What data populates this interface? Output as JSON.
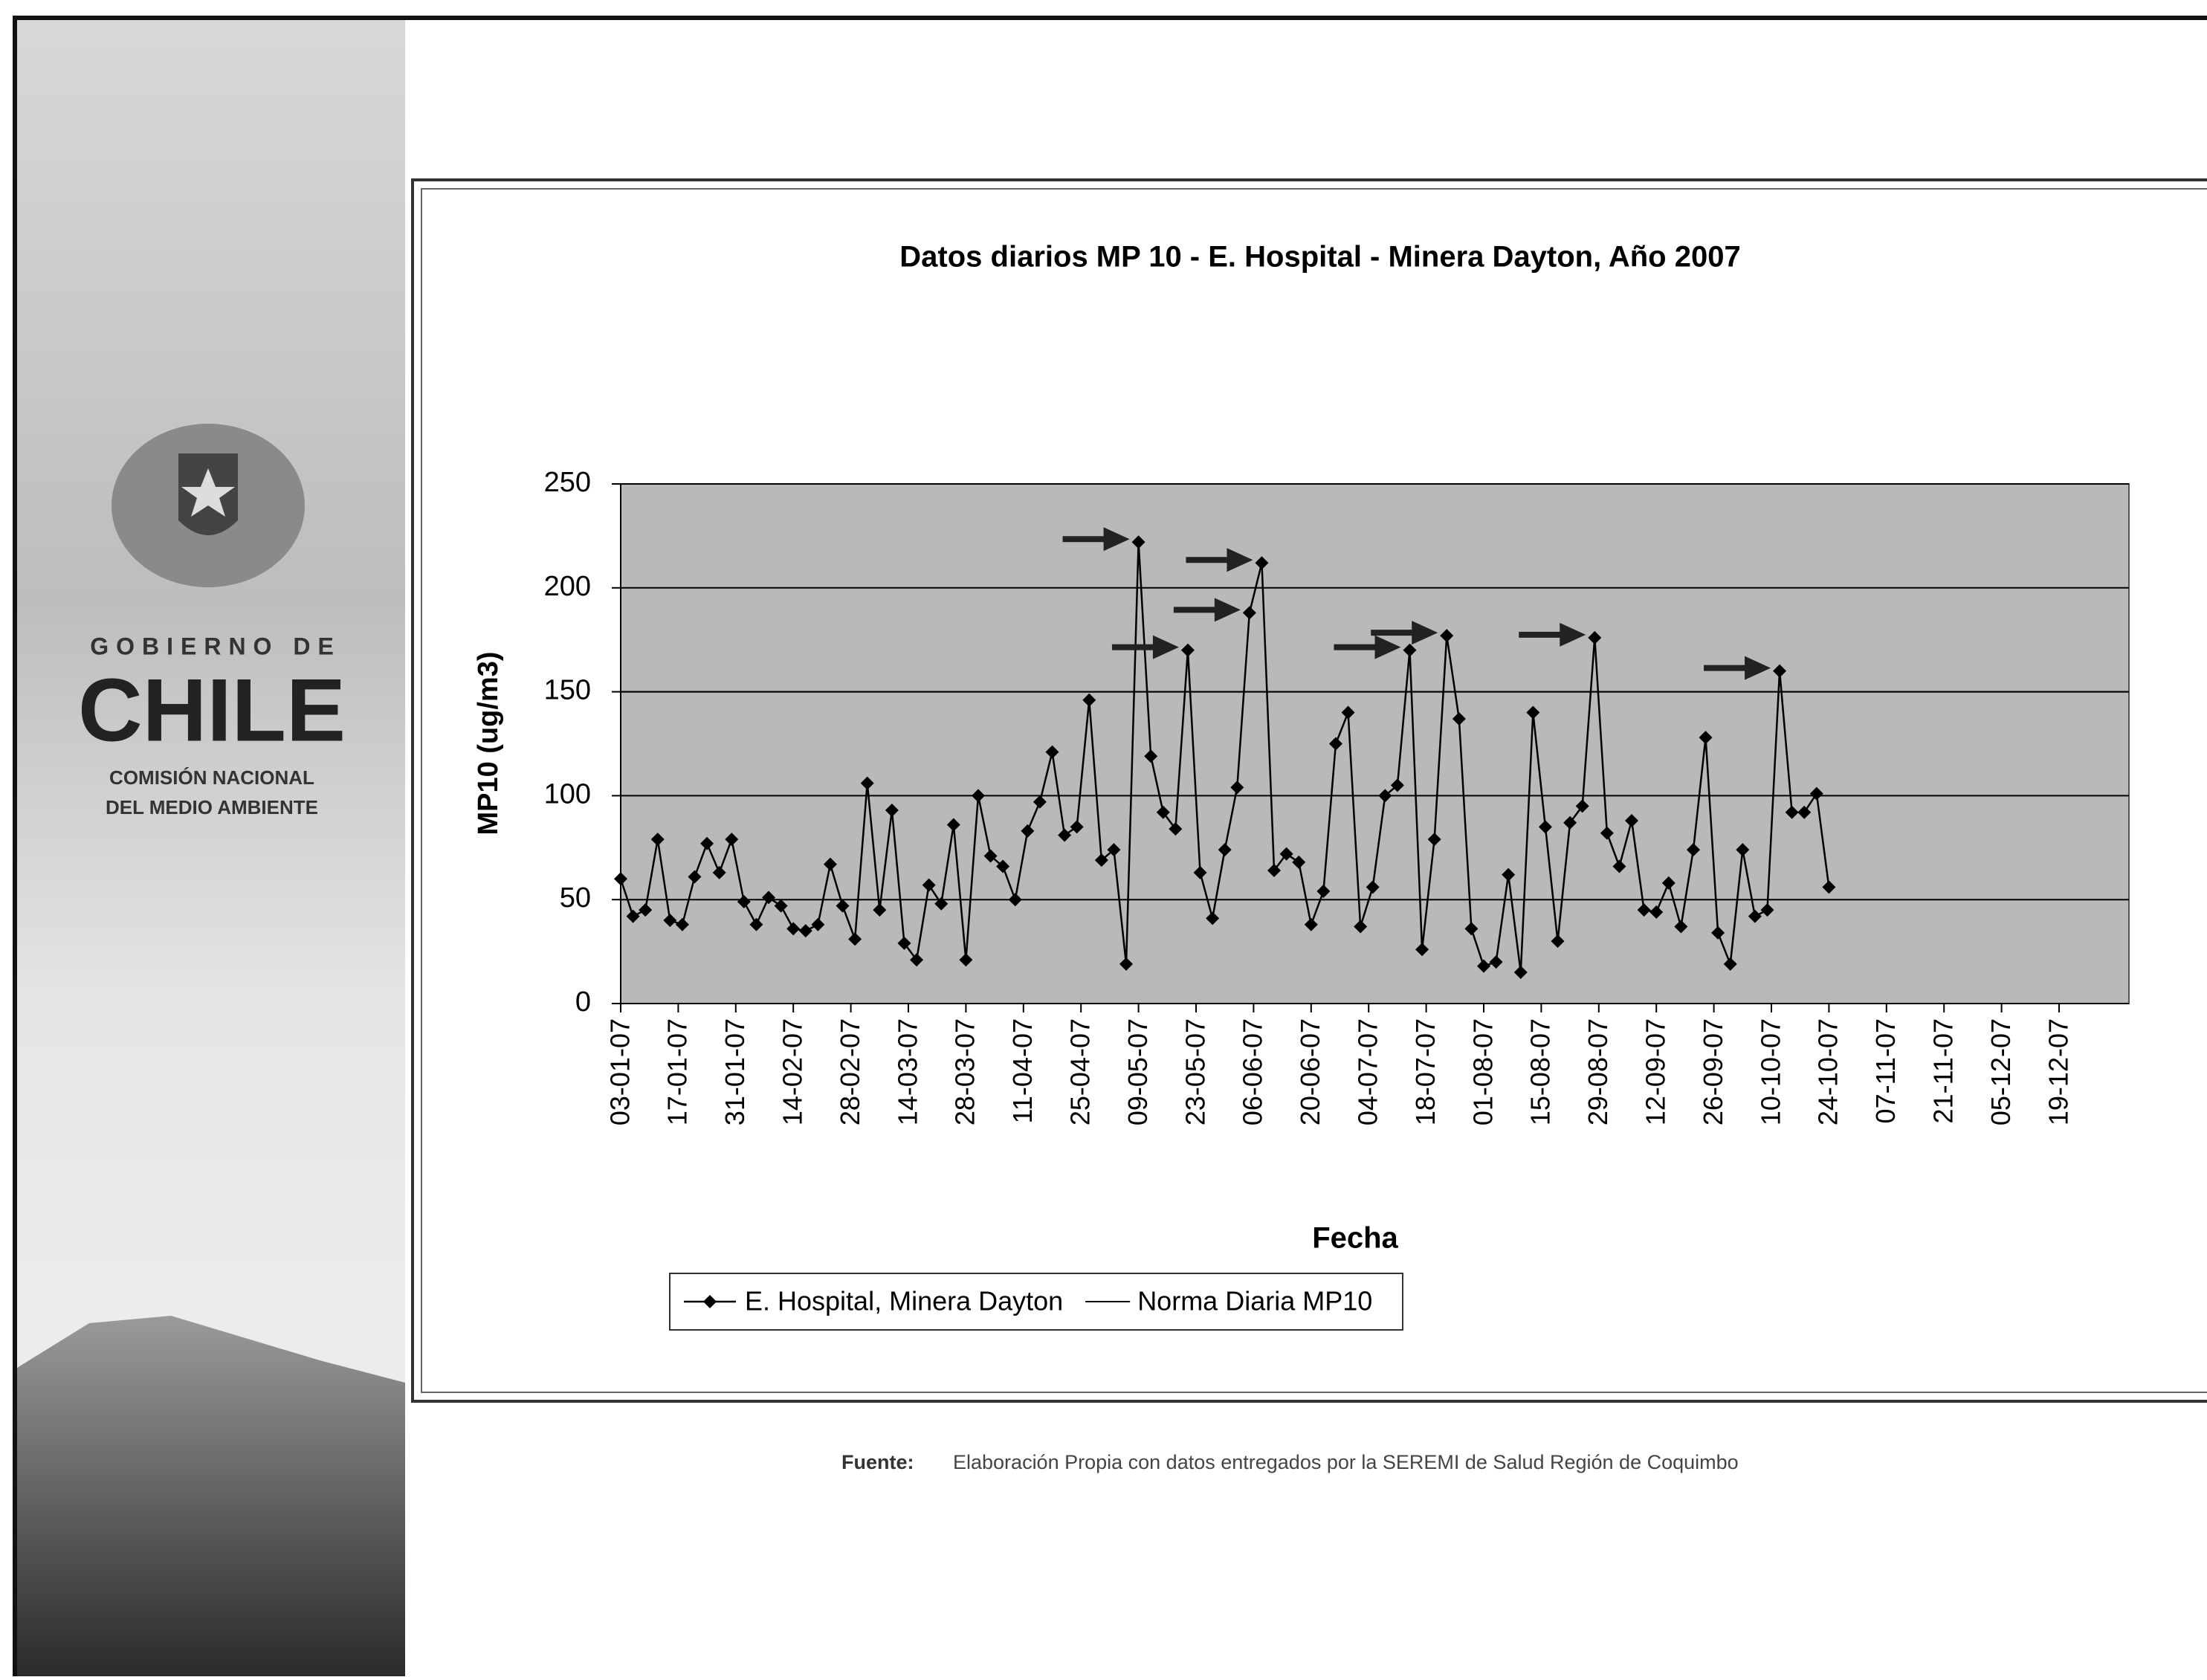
{
  "header": {
    "line1": "GOBIERNO DE",
    "line2": "CHILE",
    "line3": "COMISIÓN NACIONAL",
    "line4": "DEL MEDIO AMBIENTE"
  },
  "source": {
    "label": "Fuente:",
    "text": "Elaboración Propia con datos entregados por la SEREMI de Salud Región de Coquimbo"
  },
  "chart_data": {
    "type": "line",
    "title": "Datos diarios MP 10 -  E. Hospital - Minera Dayton,  Año 2007",
    "x_label": "Fecha",
    "y_label": "MP10 (ug/m3)",
    "x": [
      "03-01-07",
      "06-01-07",
      "09-01-07",
      "12-01-07",
      "15-01-07",
      "18-01-07",
      "21-01-07",
      "24-01-07",
      "27-01-07",
      "30-01-07",
      "02-02-07",
      "05-02-07",
      "08-02-07",
      "11-02-07",
      "14-02-07",
      "17-02-07",
      "20-02-07",
      "23-02-07",
      "26-02-07",
      "01-03-07",
      "04-03-07",
      "07-03-07",
      "10-03-07",
      "13-03-07",
      "16-03-07",
      "19-03-07",
      "22-03-07",
      "25-03-07",
      "28-03-07",
      "31-03-07",
      "03-04-07",
      "06-04-07",
      "09-04-07",
      "12-04-07",
      "15-04-07",
      "18-04-07",
      "21-04-07",
      "24-04-07",
      "27-04-07",
      "30-04-07",
      "03-05-07",
      "06-05-07",
      "09-05-07",
      "12-05-07",
      "15-05-07",
      "18-05-07",
      "21-05-07",
      "24-05-07",
      "27-05-07",
      "30-05-07",
      "02-06-07",
      "05-06-07",
      "08-06-07",
      "11-06-07",
      "14-06-07",
      "17-06-07",
      "20-06-07",
      "23-06-07",
      "26-06-07",
      "29-06-07",
      "02-07-07",
      "05-07-07",
      "08-07-07",
      "11-07-07",
      "14-07-07",
      "17-07-07",
      "20-07-07",
      "23-07-07",
      "26-07-07",
      "29-07-07",
      "01-08-07",
      "04-08-07",
      "07-08-07",
      "10-08-07",
      "13-08-07",
      "16-08-07",
      "19-08-07",
      "22-08-07",
      "25-08-07",
      "28-08-07",
      "31-08-07",
      "03-09-07",
      "06-09-07",
      "09-09-07",
      "12-09-07",
      "15-09-07",
      "18-09-07",
      "21-09-07",
      "24-09-07",
      "27-09-07",
      "30-09-07",
      "03-10-07",
      "06-10-07",
      "09-10-07",
      "12-10-07",
      "15-10-07",
      "18-10-07",
      "21-10-07",
      "24-10-07"
    ],
    "series": [
      {
        "name": "E. Hospital, Minera Dayton",
        "color": "#000000",
        "values": [
          60,
          42,
          45,
          79,
          40,
          38,
          61,
          77,
          63,
          79,
          49,
          38,
          51,
          47,
          36,
          35,
          38,
          67,
          47,
          31,
          106,
          45,
          93,
          29,
          21,
          57,
          48,
          86,
          21,
          100,
          71,
          66,
          50,
          83,
          97,
          121,
          81,
          85,
          146,
          69,
          74,
          19,
          222,
          119,
          92,
          84,
          170,
          63,
          41,
          74,
          104,
          188,
          212,
          64,
          72,
          68,
          38,
          54,
          125,
          140,
          37,
          56,
          100,
          105,
          170,
          26,
          79,
          177,
          137,
          36,
          18,
          20,
          62,
          15,
          140,
          85,
          30,
          87,
          95,
          176,
          82,
          66,
          88,
          45,
          44,
          58,
          37,
          74,
          128,
          34,
          19,
          74,
          42,
          45,
          160,
          92,
          92,
          101,
          56
        ]
      }
    ],
    "reference_line": {
      "name": "Norma Diaria MP10",
      "value": 150,
      "color": "#000000"
    },
    "xlim": [
      "03-01-07",
      "19-12-07"
    ],
    "xticks": [
      "03-01-07",
      "17-01-07",
      "31-01-07",
      "14-02-07",
      "28-02-07",
      "14-03-07",
      "28-03-07",
      "11-04-07",
      "25-04-07",
      "09-05-07",
      "23-05-07",
      "06-06-07",
      "20-06-07",
      "04-07-07",
      "18-07-07",
      "01-08-07",
      "15-08-07",
      "29-08-07",
      "12-09-07",
      "26-09-07",
      "10-10-07",
      "24-10-07",
      "07-11-07",
      "21-11-07",
      "05-12-07",
      "19-12-07"
    ],
    "ylim": [
      0,
      250
    ],
    "yticks": [
      0,
      50,
      100,
      150,
      200,
      250
    ],
    "grid": true,
    "legend": "bottom-left"
  }
}
